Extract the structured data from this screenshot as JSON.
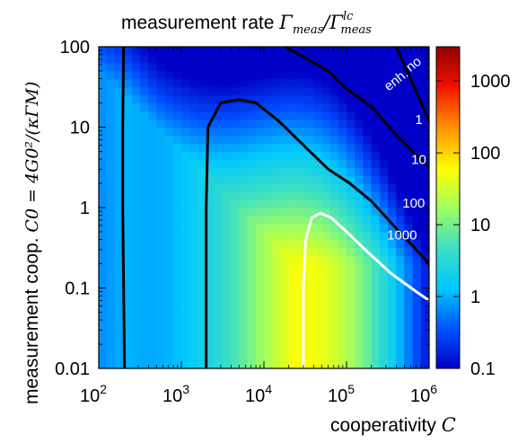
{
  "chart_data": {
    "type": "heatmap",
    "title": {
      "text": "measurement rate ",
      "math": "Γmeas/Γmeas^lc",
      "symbol": "Γ",
      "sub": "meas",
      "sup": "lc"
    },
    "xlabel": {
      "text": "cooperativity ",
      "math": "C"
    },
    "ylabel": {
      "text": "measurement coop. ",
      "math": "C0 = 4G0²/(κΓM)"
    },
    "x_scale": "log",
    "y_scale": "log",
    "xlim": [
      100,
      1000000
    ],
    "ylim": [
      0.01,
      100
    ],
    "x_ticks": [
      {
        "value": 100,
        "base": "10",
        "exp": "2"
      },
      {
        "value": 1000,
        "base": "10",
        "exp": "3"
      },
      {
        "value": 10000,
        "base": "10",
        "exp": "4"
      },
      {
        "value": 100000,
        "base": "10",
        "exp": "5"
      },
      {
        "value": 1000000,
        "base": "10",
        "exp": "6"
      }
    ],
    "y_ticks": [
      {
        "value": 100,
        "label": "100"
      },
      {
        "value": 10,
        "label": "10"
      },
      {
        "value": 1,
        "label": "1"
      },
      {
        "value": 0.1,
        "label": "0.1"
      },
      {
        "value": 0.01,
        "label": "0.01"
      }
    ],
    "colorbar": {
      "scale": "log",
      "range": [
        0.1,
        3000
      ],
      "colormap": "jet",
      "ticks": [
        {
          "value": 1000,
          "label": "1000"
        },
        {
          "value": 100,
          "label": "100"
        },
        {
          "value": 10,
          "label": "10"
        },
        {
          "value": 1,
          "label": "1"
        },
        {
          "value": 0.1,
          "label": "0.1"
        }
      ]
    },
    "contours": [
      {
        "level": 1,
        "label": "1",
        "color": "#000000",
        "segments": [
          [
            [
              200,
              100
            ],
            [
              195,
              10
            ],
            [
              195,
              1
            ],
            [
              200,
              0.1
            ],
            [
              205,
              0.01
            ]
          ],
          [
            [
              400000,
              100
            ],
            [
              1000000,
              12
            ]
          ]
        ]
      },
      {
        "level": 10,
        "label": "10",
        "color": "#000000",
        "segments": [
          [
            [
              2000,
              0.01
            ],
            [
              2000,
              0.1
            ],
            [
              2000,
              1
            ],
            [
              2100,
              10
            ],
            [
              3000,
              20
            ],
            [
              5000,
              22
            ],
            [
              8000,
              20
            ],
            [
              15000,
              12
            ],
            [
              30000,
              6
            ],
            [
              60000,
              3
            ],
            [
              110000,
              2
            ],
            [
              200000,
              1.2
            ],
            [
              400000,
              0.55
            ],
            [
              700000,
              0.3
            ],
            [
              1000000,
              0.2
            ]
          ]
        ]
      },
      {
        "level": 100,
        "label": "100",
        "color": "#000000",
        "segments": [
          [
            [
              18000,
              100
            ],
            [
              60000,
              50
            ],
            [
              100000,
              30
            ],
            [
              200000,
              18
            ],
            [
              400000,
              8
            ],
            [
              700000,
              4.5
            ],
            [
              1000000,
              3.2
            ]
          ]
        ]
      },
      {
        "level": 1000,
        "label": "1000",
        "color": "#ffffff",
        "segments": [
          [
            [
              30000,
              0.01
            ],
            [
              30000,
              0.1
            ],
            [
              32000,
              0.4
            ],
            [
              38000,
              0.75
            ],
            [
              48000,
              0.85
            ],
            [
              65000,
              0.75
            ],
            [
              100000,
              0.5
            ],
            [
              180000,
              0.28
            ],
            [
              350000,
              0.15
            ],
            [
              700000,
              0.09
            ],
            [
              1000000,
              0.07
            ]
          ]
        ]
      }
    ],
    "annotations": [
      {
        "text": "no",
        "x": 700000,
        "y": 55,
        "color": "#ffffff",
        "rotate": -38
      },
      {
        "text": "enh.",
        "x": 430000,
        "y": 35,
        "color": "#ffffff",
        "rotate": -38
      },
      {
        "text": "1",
        "x": 750000,
        "y": 11,
        "color": "#ffffff",
        "rotate": 0
      },
      {
        "text": "10",
        "x": 750000,
        "y": 3.5,
        "color": "#ffffff",
        "rotate": 0
      },
      {
        "text": "100",
        "x": 650000,
        "y": 1.0,
        "color": "#ffffff",
        "rotate": 0
      },
      {
        "text": "1000",
        "x": 470000,
        "y": 0.4,
        "color": "#ffffff",
        "rotate": 0
      }
    ]
  }
}
